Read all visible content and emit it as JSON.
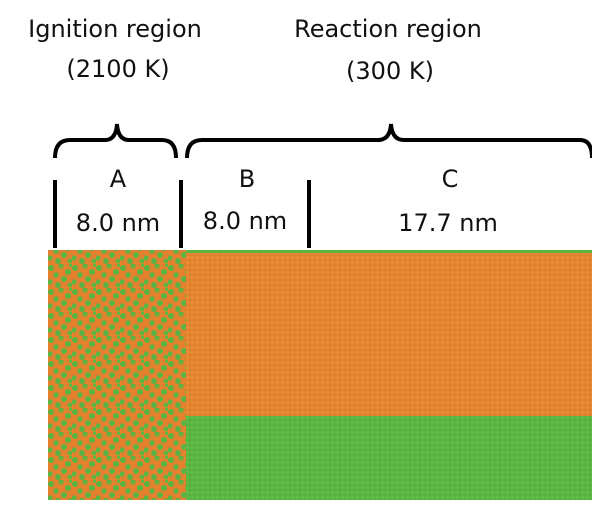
{
  "regions": [
    {
      "name": "Ignition region",
      "temperature": "(2100 K)"
    },
    {
      "name": "Reaction region",
      "temperature": "(300 K)"
    }
  ],
  "segments": [
    {
      "label": "A",
      "width": "8.0 nm"
    },
    {
      "label": "B",
      "width": "8.0 nm"
    },
    {
      "label": "C",
      "width": "17.7 nm"
    }
  ]
}
